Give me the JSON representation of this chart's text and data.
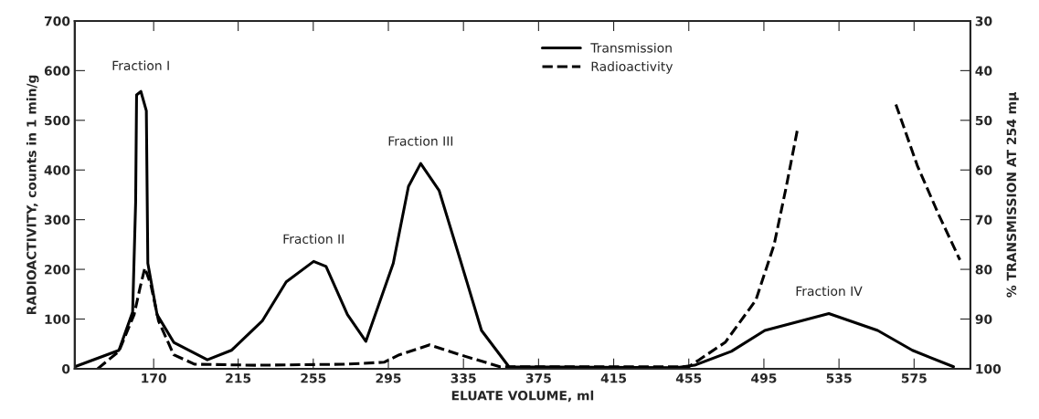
{
  "chart_data": {
    "type": "line",
    "xlabel": "ELUATE VOLUME, ml",
    "ylabel": "RADIOACTIVITY, counts in 1 min/g",
    "y2label": "% TRANSMISSION AT 254 mμ",
    "xlim": [
      128,
      605
    ],
    "xticks": [
      170,
      215,
      255,
      295,
      335,
      375,
      415,
      455,
      495,
      535,
      575
    ],
    "ylim": [
      0,
      700
    ],
    "yticks": [
      0,
      100,
      200,
      300,
      400,
      500,
      600,
      700
    ],
    "y2lim": [
      100,
      30
    ],
    "y2ticks": [
      30,
      40,
      50,
      60,
      70,
      80,
      90,
      100
    ],
    "legend": "top",
    "grid": false,
    "series": [
      {
        "name": "Transmission",
        "color": "#000000",
        "line_style": "solid",
        "axis": "y2",
        "x": [
          128,
          151.5,
          158.8,
          160.4,
          160.9,
          163.2,
          166.1,
          166.9,
          171.8,
          180.7,
          198.6,
          211.4,
          227.8,
          240.6,
          255.2,
          261.8,
          273.2,
          283,
          297.6,
          305.7,
          312.2,
          322,
          333.3,
          344.6,
          359.2,
          448.5,
          458.2,
          477.7,
          495.5,
          529.6,
          555.6,
          574.1,
          596
        ],
        "values": [
          99.6,
          96.3,
          88.6,
          66.5,
          44.9,
          44.2,
          48.1,
          78.8,
          89.1,
          94.7,
          98.2,
          96.3,
          90.4,
          82.5,
          78.4,
          79.4,
          89.1,
          94.5,
          78.8,
          63.3,
          58.7,
          64.1,
          78.1,
          92.3,
          99.6,
          99.8,
          99.3,
          96.5,
          92.3,
          88.9,
          92.3,
          96.3,
          99.6
        ]
      },
      {
        "name": "Radioactivity",
        "color": "#000000",
        "line_style": "dashed",
        "axis": "y",
        "x": [
          140.2,
          151.5,
          159.6,
          162.8,
          165.3,
          168.5,
          172.6,
          180.7,
          191.9,
          224.5,
          271.6,
          292.7,
          300.8,
          317,
          333.3,
          354.4,
          455,
          474.4,
          490.7,
          500.4,
          506.9,
          513.1,
          540,
          565.3,
          576.7,
          588,
          599.4
        ],
        "values": [
          0,
          35,
          109,
          164,
          203,
          169,
          96,
          28,
          9,
          7,
          9,
          13,
          28,
          48,
          28,
          4,
          4,
          53,
          138,
          249,
          366,
          486,
          null,
          532,
          409,
          311,
          219
        ]
      }
    ],
    "annotations": [
      {
        "text": "Fraction I",
        "x": 163.2,
        "y": 565
      },
      {
        "text": "Fraction II",
        "x": 255.2,
        "y": 216
      },
      {
        "text": "Fraction III",
        "x": 312.2,
        "y": 413
      },
      {
        "text": "Fraction IV",
        "x": 529.6,
        "y": 111
      }
    ]
  }
}
